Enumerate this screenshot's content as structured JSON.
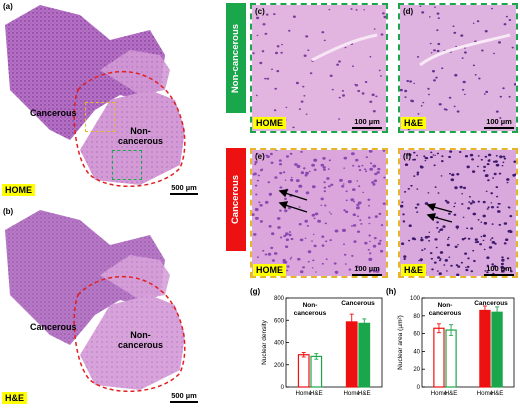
{
  "panels": {
    "a": {
      "letter": "(a)",
      "tag": "HOME",
      "scale": "500 µm",
      "label_cancerous": "Cancerous",
      "label_noncancerous": "Non-\ncancerous"
    },
    "b": {
      "letter": "(b)",
      "tag": "H&E",
      "scale": "500 µm",
      "label_cancerous": "Cancerous",
      "label_noncancerous": "Non-\ncancerous"
    },
    "c": {
      "letter": "(c)",
      "tag": "HOME",
      "scale": "100 µm"
    },
    "d": {
      "letter": "(d)",
      "tag": "H&E",
      "scale": "100 µm"
    },
    "e": {
      "letter": "(e)",
      "tag": "HOME",
      "scale": "100 µm"
    },
    "f": {
      "letter": "(f)",
      "tag": "H&E",
      "scale": "100 µm"
    }
  },
  "side_labels": {
    "noncancerous": "Non-cancerous",
    "cancerous": "Cancerous"
  },
  "colors": {
    "tissue": "#b06ec0",
    "tissue_light": "#d9a9dc",
    "green": "#1aa64a",
    "red": "#ee1111",
    "yellow": "#e8b52a",
    "tag": "#ffff00",
    "boundary": "#e02020"
  },
  "chart_data": [
    {
      "type": "bar",
      "panel": "(g)",
      "ylabel": "Nuclear density",
      "ylim": [
        0,
        800
      ],
      "yticks": [
        0,
        200,
        400,
        600,
        800
      ],
      "groups": [
        {
          "name": "Non-\ncancerous",
          "categories": [
            "Home",
            "H&E"
          ],
          "values": [
            290,
            275
          ],
          "errors": [
            20,
            25
          ]
        },
        {
          "name": "Cancerous",
          "categories": [
            "Home",
            "H&E"
          ],
          "values": [
            585,
            572
          ],
          "errors": [
            70,
            40
          ]
        }
      ],
      "series_colors": [
        "#ee1111",
        "#1aa64a"
      ]
    },
    {
      "type": "bar",
      "panel": "(h)",
      "ylabel": "Nuclear area (µm²)",
      "ylim": [
        0,
        100
      ],
      "yticks": [
        0,
        20,
        40,
        60,
        80,
        100
      ],
      "groups": [
        {
          "name": "Non-\ncancerous",
          "categories": [
            "Home",
            "H&E"
          ],
          "values": [
            66,
            64
          ],
          "errors": [
            5,
            6
          ]
        },
        {
          "name": "Cancerous",
          "categories": [
            "Home",
            "H&E"
          ],
          "values": [
            86,
            84
          ],
          "errors": [
            5,
            6
          ]
        }
      ],
      "series_colors": [
        "#ee1111",
        "#1aa64a"
      ]
    }
  ]
}
